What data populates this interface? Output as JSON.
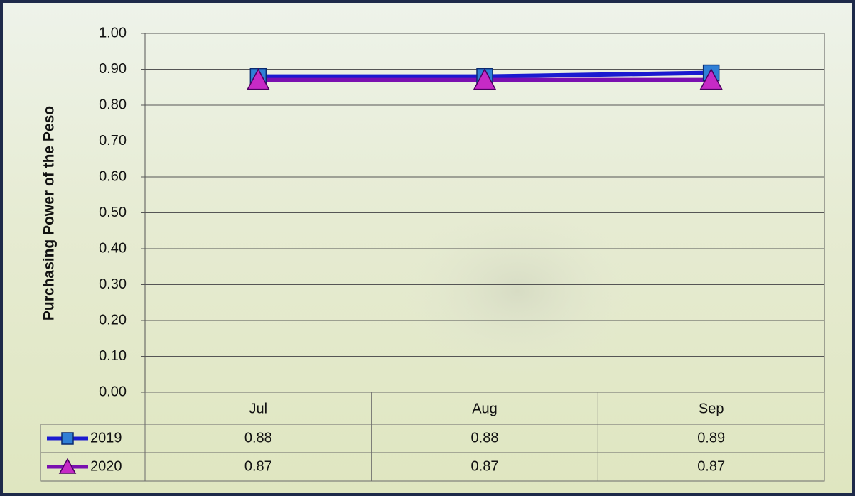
{
  "chart_data": {
    "type": "line",
    "y_label": "Purchasing Power of the Peso",
    "categories": [
      "Jul",
      "Aug",
      "Sep"
    ],
    "series": [
      {
        "name": "2019",
        "color": "#1a1ad0",
        "marker_color": "#2f7fd6",
        "marker": "square",
        "values": [
          0.88,
          0.88,
          0.89
        ]
      },
      {
        "name": "2020",
        "color": "#7a10b0",
        "marker_color": "#c62ac6",
        "marker": "triangle",
        "values": [
          0.87,
          0.87,
          0.87
        ]
      }
    ],
    "ylim": [
      0,
      1
    ],
    "yticks": [
      {
        "value": 0,
        "label": "0.00"
      },
      {
        "value": 0.1,
        "label": "0.10"
      },
      {
        "value": 0.2,
        "label": "0.20"
      },
      {
        "value": 0.3,
        "label": "0.30"
      },
      {
        "value": 0.4,
        "label": "0.40"
      },
      {
        "value": 0.5,
        "label": "0.50"
      },
      {
        "value": 0.6,
        "label": "0.60"
      },
      {
        "value": 0.7,
        "label": "0.70"
      },
      {
        "value": 0.8,
        "label": "0.80"
      },
      {
        "value": 0.9,
        "label": "0.90"
      },
      {
        "value": 1,
        "label": "1.00"
      }
    ],
    "grid": true,
    "data_table": true
  }
}
